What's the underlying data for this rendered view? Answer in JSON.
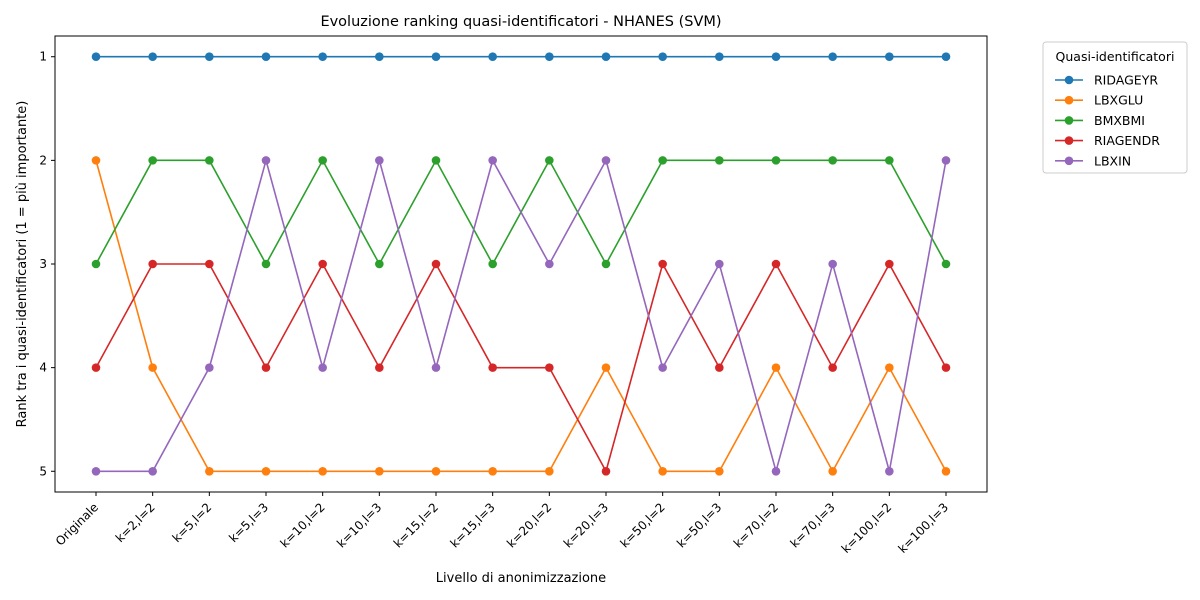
{
  "chart_data": {
    "type": "line",
    "title": "Evoluzione ranking quasi-identificatori - NHANES (SVM)",
    "xlabel": "Livello di anonimizzazione",
    "ylabel": "Rank tra i quasi-identificatori (1 = più importante)",
    "categories": [
      "Originale",
      "k=2,l=2",
      "k=5,l=2",
      "k=5,l=3",
      "k=10,l=2",
      "k=10,l=3",
      "k=15,l=2",
      "k=15,l=3",
      "k=20,l=2",
      "k=20,l=3",
      "k=50,l=2",
      "k=50,l=3",
      "k=70,l=2",
      "k=70,l=3",
      "k=100,l=2",
      "k=100,l=3"
    ],
    "yticks": [
      "1",
      "2",
      "3",
      "4",
      "5"
    ],
    "ylim": [
      5.2,
      0.8
    ],
    "y_inverted": true,
    "grid": false,
    "legend_title": "Quasi-identificatori",
    "legend_position": "outside-top-right",
    "series": [
      {
        "name": "RIDAGEYR",
        "color": "#1f77b4",
        "values": [
          1,
          1,
          1,
          1,
          1,
          1,
          1,
          1,
          1,
          1,
          1,
          1,
          1,
          1,
          1,
          1
        ]
      },
      {
        "name": "LBXGLU",
        "color": "#ff7f0e",
        "values": [
          2,
          4,
          5,
          5,
          5,
          5,
          5,
          5,
          5,
          4,
          5,
          5,
          4,
          5,
          4,
          5
        ]
      },
      {
        "name": "BMXBMI",
        "color": "#2ca02c",
        "values": [
          3,
          2,
          2,
          3,
          2,
          3,
          2,
          3,
          2,
          3,
          2,
          2,
          2,
          2,
          2,
          3
        ]
      },
      {
        "name": "RIAGENDR",
        "color": "#d62728",
        "values": [
          4,
          3,
          3,
          4,
          3,
          4,
          3,
          4,
          4,
          5,
          3,
          4,
          3,
          4,
          3,
          4
        ]
      },
      {
        "name": "LBXIN",
        "color": "#9467bd",
        "values": [
          5,
          5,
          4,
          2,
          4,
          2,
          4,
          2,
          3,
          2,
          4,
          3,
          5,
          3,
          5,
          2
        ]
      }
    ]
  }
}
